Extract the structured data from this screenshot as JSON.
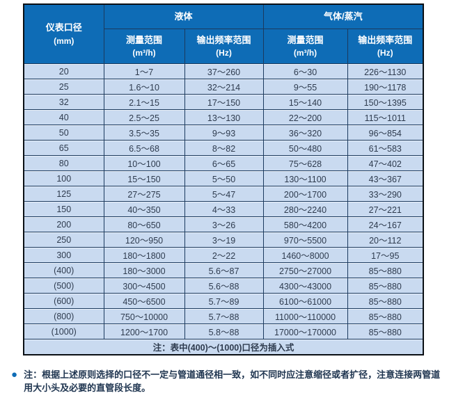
{
  "table": {
    "header": {
      "diameter_title": "仪表口径",
      "diameter_unit": "(mm)",
      "group_liquid": "液体",
      "group_gas": "气体/蒸汽",
      "liquid_measure": "测量范围",
      "liquid_measure_unit": "(m³/h)",
      "liquid_freq": "输出频率范围",
      "liquid_freq_unit": "(Hz)",
      "gas_measure": "测量范围",
      "gas_measure_unit": "(m³/h)",
      "gas_freq": "输出频率范围",
      "gas_freq_unit": "(Hz)"
    },
    "rows": [
      [
        "20",
        "1～7",
        "37～260",
        "6～30",
        "226～1130"
      ],
      [
        "25",
        "1.6～10",
        "32～214",
        "9～55",
        "190～1178"
      ],
      [
        "32",
        "2.1～15",
        "17～150",
        "15～140",
        "150～1395"
      ],
      [
        "40",
        "2.5～25",
        "13～130",
        "22～200",
        "115～1011"
      ],
      [
        "50",
        "3.5～35",
        "9～93",
        "36～320",
        "96～854"
      ],
      [
        "65",
        "6.5～68",
        "8～82",
        "50～480",
        "61～583"
      ],
      [
        "80",
        "10～100",
        "6～65",
        "75～628",
        "47～402"
      ],
      [
        "100",
        "15～150",
        "5～50",
        "130～1100",
        "43～367"
      ],
      [
        "125",
        "27～275",
        "5～47",
        "200～1700",
        "33～290"
      ],
      [
        "150",
        "40～350",
        "4～33",
        "280～2240",
        "27～221"
      ],
      [
        "200",
        "80～650",
        "3～26",
        "580～4200",
        "24～167"
      ],
      [
        "250",
        "120～950",
        "3～19",
        "970～5500",
        "20～112"
      ],
      [
        "300",
        "180～1800",
        "2～22",
        "1460～8000",
        "17～95"
      ],
      [
        "(400)",
        "180～3000",
        "5.6～87",
        "2750～27000",
        "85～880"
      ],
      [
        "(500)",
        "300～4500",
        "5.6～88",
        "4300～43000",
        "85～880"
      ],
      [
        "(600)",
        "450～6500",
        "5.7～89",
        "6100～61000",
        "85～880"
      ],
      [
        "(800)",
        "750～10000",
        "5.7～88",
        "11000～110000",
        "85～880"
      ],
      [
        "(1000)",
        "1200～1700",
        "5.8～88",
        "17000～170000",
        "85～880"
      ]
    ],
    "footnote": "注：表中(400)～(1000)口径为插入式"
  },
  "bottom_note": {
    "bullet": "●",
    "text": "注：根据上述原则选择的口径不一定与管道通径相一致，如不同时应注意缩径或者扩径，注意连接两管道用大小头及必要的直管段长度。"
  },
  "colors": {
    "header_blue": "#0e6cb6",
    "cell_blue": "#c9daf0",
    "border_dark": "#1b3a5e",
    "note_text": "#1f3550"
  }
}
